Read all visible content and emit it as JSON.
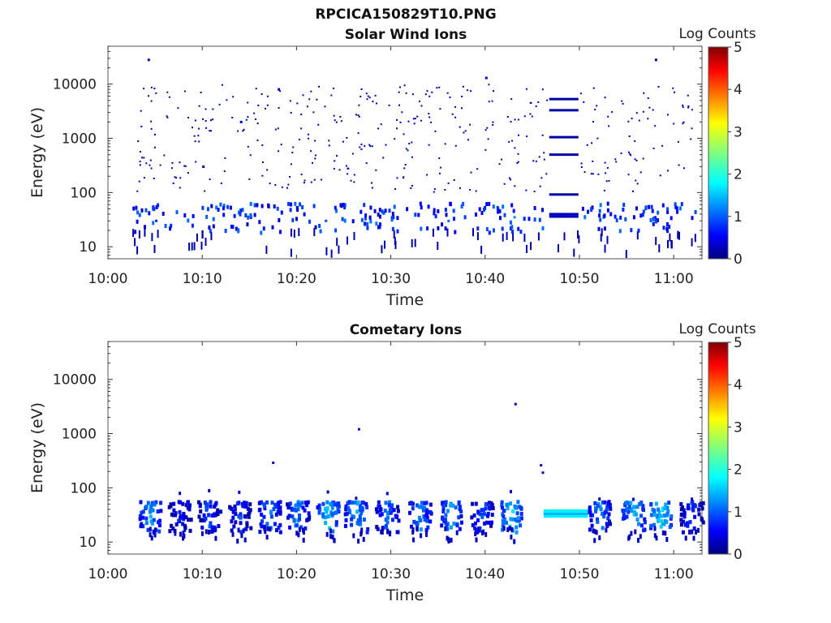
{
  "figure": {
    "title": "RPCICA150829T10.PNG"
  },
  "chart_data": [
    {
      "type": "heatmap",
      "title": "Solar Wind Ions",
      "xlabel": "Time",
      "ylabel": "Energy (eV)",
      "colorbar_label": "Log Counts",
      "x_ticks": [
        "10:00",
        "10:10",
        "10:20",
        "10:30",
        "10:40",
        "10:50",
        "11:00"
      ],
      "y_ticks": [
        "10",
        "100",
        "1000",
        "10000"
      ],
      "colorbar_ticks": [
        "0",
        "1",
        "2",
        "3",
        "4",
        "5"
      ],
      "x_range_minutes": [
        0,
        63
      ],
      "y_range_eV": [
        6,
        50000
      ],
      "y_scale": "log",
      "colorbar_range": [
        0,
        5
      ],
      "colormap": "jet",
      "description_of_data": "Sparse low-count (~0-1 log counts) scattered pixels 10 eV-10 keV; denser bands 10-60 eV; steady horizontal lines ~10:47-10:50",
      "sample_points": [
        {
          "t": 4.2,
          "e": 28000,
          "c": 0.3
        },
        {
          "t": 5.0,
          "e": 30,
          "c": 0.8
        },
        {
          "t": 10.0,
          "e": 300,
          "c": 0.3
        },
        {
          "t": 14.0,
          "e": 2000,
          "c": 0.3
        },
        {
          "t": 18.0,
          "e": 8000,
          "c": 0.3
        },
        {
          "t": 23.0,
          "e": 30,
          "c": 1.0
        },
        {
          "t": 30.0,
          "e": 35,
          "c": 0.9
        },
        {
          "t": 36.0,
          "e": 30,
          "c": 1.1
        },
        {
          "t": 40.0,
          "e": 13000,
          "c": 0.3
        },
        {
          "t": 43.0,
          "e": 35,
          "c": 1.3
        },
        {
          "t": 48.0,
          "e": 38,
          "c": 0.9
        },
        {
          "t": 58.0,
          "e": 28000,
          "c": 0.3
        }
      ],
      "line_segments": [
        {
          "t0": 46.8,
          "t1": 49.9,
          "e": 5300,
          "c": 0.2
        },
        {
          "t0": 46.8,
          "t1": 49.9,
          "e": 3300,
          "c": 0.2
        },
        {
          "t0": 46.8,
          "t1": 49.9,
          "e": 1050,
          "c": 0.2
        },
        {
          "t0": 46.8,
          "t1": 49.9,
          "e": 500,
          "c": 0.2
        },
        {
          "t0": 46.8,
          "t1": 49.9,
          "e": 92,
          "c": 0.2
        },
        {
          "t0": 46.8,
          "t1": 49.9,
          "e": 40,
          "c": 0.3
        },
        {
          "t0": 46.8,
          "t1": 49.9,
          "e": 36,
          "c": 0.3
        }
      ]
    },
    {
      "type": "heatmap",
      "title": "Cometary Ions",
      "xlabel": "Time",
      "ylabel": "Energy (eV)",
      "colorbar_label": "Log Counts",
      "x_ticks": [
        "10:00",
        "10:10",
        "10:20",
        "10:30",
        "10:40",
        "10:50",
        "11:00"
      ],
      "y_ticks": [
        "10",
        "100",
        "1000",
        "10000"
      ],
      "colorbar_ticks": [
        "0",
        "1",
        "2",
        "3",
        "4",
        "5"
      ],
      "x_range_minutes": [
        0,
        63
      ],
      "y_range_eV": [
        6,
        50000
      ],
      "y_scale": "log",
      "colorbar_range": [
        0,
        5
      ],
      "colormap": "jet",
      "description_of_data": "Bursts of 1-2 log counts at 15-80 eV recurring every ~3 minutes; continuous band ~30-40 eV from 10:46-10:51; isolated points at 10:17 (~300 eV), 10:26 (~1200 eV), 10:43 (~3500 eV), 10:46 (~250 eV)",
      "bursts": [
        {
          "t": 4.4,
          "c": 1.6
        },
        {
          "t": 7.5,
          "c": 1.0
        },
        {
          "t": 10.6,
          "c": 1.2
        },
        {
          "t": 13.8,
          "c": 1.1
        },
        {
          "t": 17.0,
          "c": 1.5
        },
        {
          "t": 20.0,
          "c": 1.5
        },
        {
          "t": 23.2,
          "c": 1.8
        },
        {
          "t": 26.2,
          "c": 1.7
        },
        {
          "t": 29.5,
          "c": 1.4
        },
        {
          "t": 33.0,
          "c": 1.5
        },
        {
          "t": 36.2,
          "c": 1.6
        },
        {
          "t": 39.5,
          "c": 1.3
        },
        {
          "t": 42.6,
          "c": 1.9
        },
        {
          "t": 52.0,
          "c": 1.5
        },
        {
          "t": 55.6,
          "c": 1.8
        },
        {
          "t": 58.5,
          "c": 1.9
        },
        {
          "t": 61.8,
          "c": 1.2
        }
      ],
      "band": {
        "t0": 46.2,
        "t1": 50.9,
        "e0": 28,
        "e1": 40,
        "c": 1.8
      },
      "isolated_points": [
        {
          "t": 17.4,
          "e": 290,
          "c": 0.3
        },
        {
          "t": 26.5,
          "e": 1200,
          "c": 0.3
        },
        {
          "t": 43.1,
          "e": 3500,
          "c": 0.3
        },
        {
          "t": 45.8,
          "e": 260,
          "c": 0.3
        },
        {
          "t": 46.0,
          "e": 190,
          "c": 0.3
        }
      ]
    }
  ]
}
